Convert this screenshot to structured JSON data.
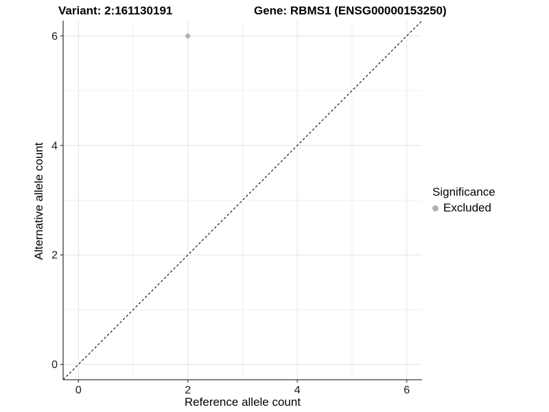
{
  "titles": {
    "variant": "Variant: 2:161130191",
    "gene": "Gene: RBMS1 (ENSG00000153250)"
  },
  "legend": {
    "title": "Significance",
    "items": [
      {
        "label": "Excluded",
        "color": "#b0b0b0"
      }
    ]
  },
  "chart_data": {
    "type": "scatter",
    "title_left": "Variant: 2:161130191",
    "title_right": "Gene: RBMS1 (ENSG00000153250)",
    "xlabel": "Reference allele count",
    "ylabel": "Alternative allele count",
    "xlim": [
      -0.28,
      6.28
    ],
    "ylim": [
      -0.28,
      6.28
    ],
    "x_ticks": [
      0,
      2,
      4,
      6
    ],
    "y_ticks": [
      0,
      2,
      4,
      6
    ],
    "x_minor": [
      1,
      3,
      5
    ],
    "y_minor": [
      1,
      3,
      5
    ],
    "grid": true,
    "legend_position": "right",
    "series": [
      {
        "name": "Excluded",
        "points": [
          {
            "x": 2,
            "y": 6
          }
        ]
      }
    ],
    "reference_line": {
      "type": "identity",
      "slope": 1,
      "intercept": 0,
      "style": "dashed",
      "color": "#000000"
    },
    "colors": {
      "excluded": "#b0b0b0",
      "grid_major": "#e3e3e3",
      "grid_minor": "#f1f1f1",
      "axis": "#3c3c3c",
      "tick_text": "#1a1a1a",
      "dashed_line": "#000000",
      "background": "#ffffff"
    }
  }
}
